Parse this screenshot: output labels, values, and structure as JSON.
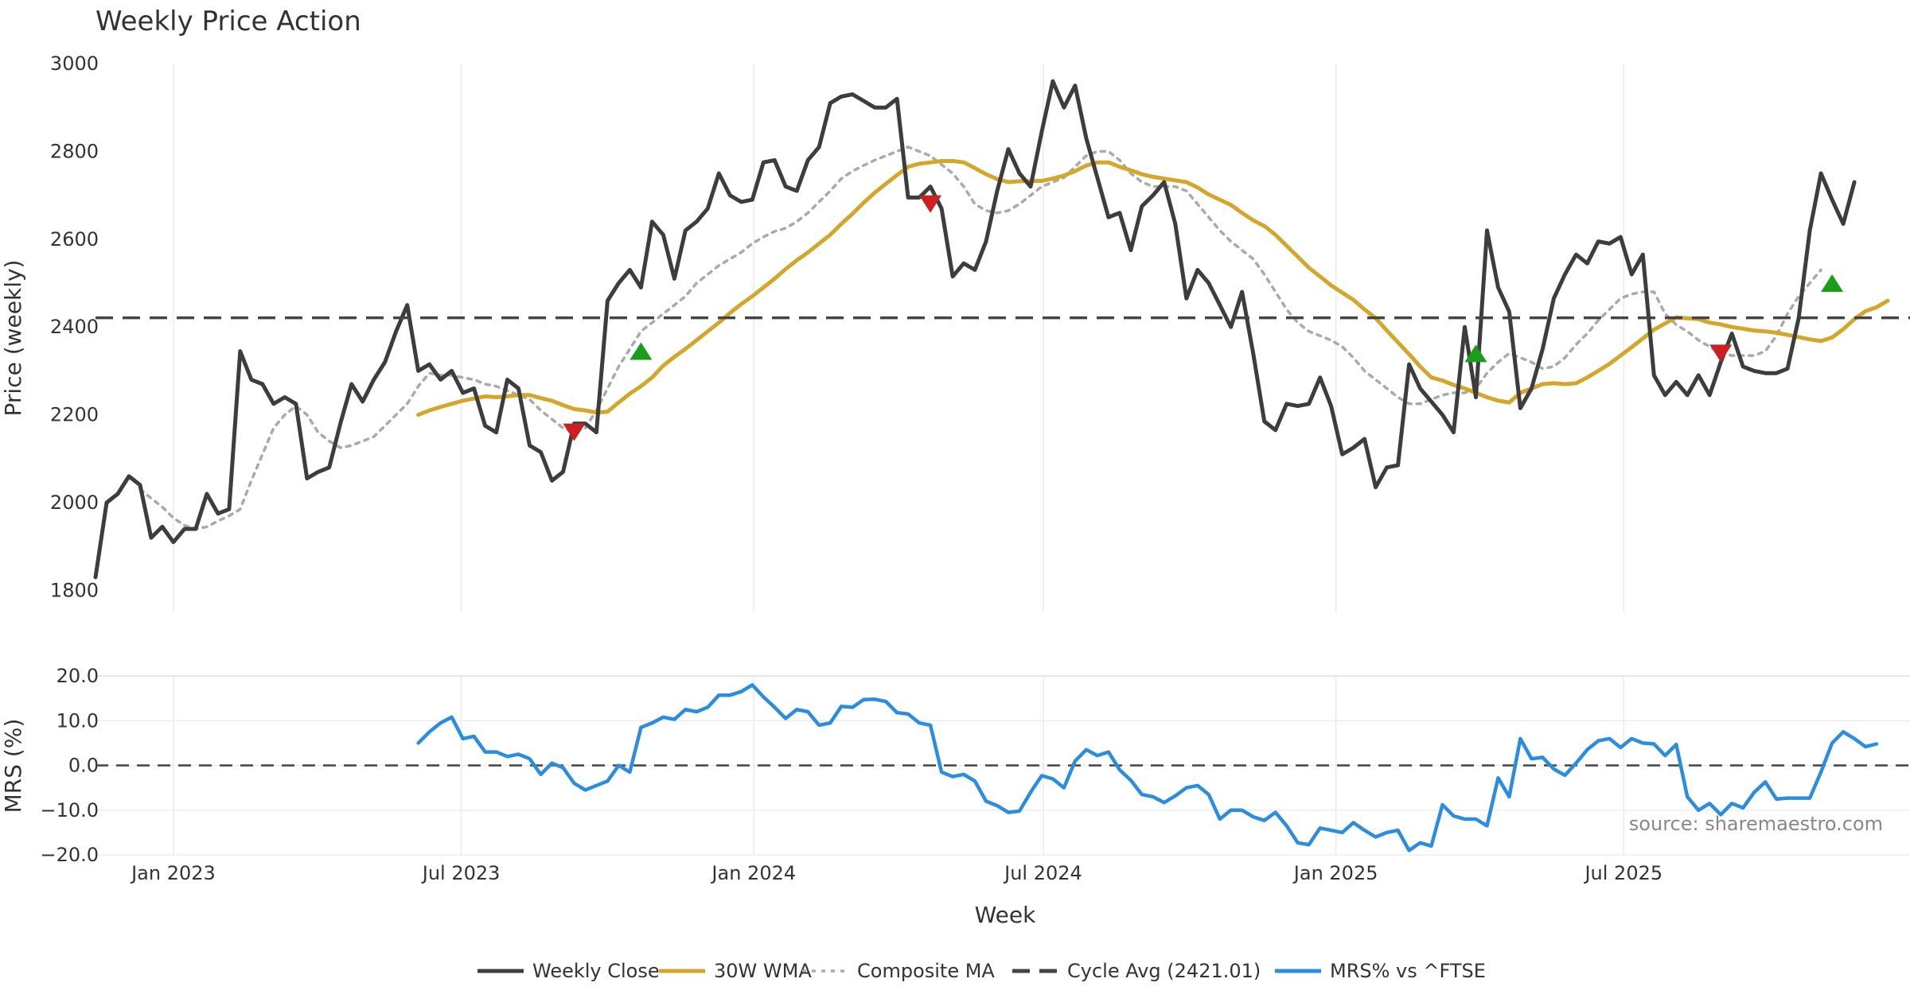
{
  "chart_data": [
    {
      "type": "line",
      "title": "Weekly Price Action",
      "ylabel": "Price (weekly)",
      "ylim": [
        1750,
        3000
      ],
      "yticks": [
        1800,
        2000,
        2200,
        2400,
        2600,
        2800,
        3000
      ],
      "xlim": [
        "2022-11-13",
        "2025-12-28"
      ],
      "grid": true,
      "x_start": "2022-11-13",
      "x_step_days": 7,
      "series": [
        {
          "name": "Weekly Close",
          "color": "#3d3d3d",
          "style": "solid",
          "offset": 0,
          "values": [
            1830,
            2000,
            2020,
            2060,
            2040,
            1920,
            1945,
            1910,
            1940,
            1940,
            2020,
            1975,
            1985,
            2345,
            2280,
            2270,
            2225,
            2240,
            2225,
            2055,
            2070,
            2080,
            2180,
            2270,
            2230,
            2280,
            2320,
            2390,
            2450,
            2300,
            2315,
            2280,
            2300,
            2250,
            2260,
            2175,
            2160,
            2280,
            2260,
            2130,
            2115,
            2050,
            2070,
            2180,
            2180,
            2160,
            2460,
            2500,
            2530,
            2490,
            2640,
            2610,
            2510,
            2620,
            2640,
            2670,
            2750,
            2700,
            2685,
            2690,
            2775,
            2780,
            2720,
            2710,
            2780,
            2810,
            2910,
            2925,
            2930,
            2915,
            2900,
            2900,
            2920,
            2695,
            2695,
            2720,
            2670,
            2515,
            2545,
            2530,
            2595,
            2710,
            2805,
            2750,
            2720,
            2845,
            2960,
            2900,
            2950,
            2830,
            2740,
            2650,
            2660,
            2575,
            2675,
            2700,
            2730,
            2635,
            2465,
            2530,
            2500,
            2450,
            2400,
            2480,
            2340,
            2185,
            2165,
            2225,
            2220,
            2225,
            2285,
            2220,
            2110,
            2125,
            2145,
            2035,
            2080,
            2085,
            2315,
            2260,
            2230,
            2200,
            2160,
            2400,
            2240,
            2620,
            2490,
            2435,
            2215,
            2260,
            2350,
            2465,
            2520,
            2565,
            2545,
            2595,
            2590,
            2605,
            2520,
            2565,
            2290,
            2245,
            2275,
            2245,
            2290,
            2245,
            2320,
            2385,
            2310,
            2300,
            2295,
            2295,
            2305,
            2420,
            2620,
            2750,
            2690,
            2635,
            2730
          ]
        },
        {
          "name": "30W WMA",
          "color": "#d4a62a",
          "style": "solid",
          "offset": 29,
          "values": [
            2200,
            2210,
            2218,
            2225,
            2232,
            2237,
            2242,
            2240,
            2242,
            2245,
            2245,
            2238,
            2232,
            2222,
            2213,
            2210,
            2205,
            2207,
            2228,
            2248,
            2265,
            2285,
            2312,
            2332,
            2350,
            2370,
            2390,
            2410,
            2432,
            2452,
            2470,
            2490,
            2510,
            2532,
            2552,
            2570,
            2590,
            2610,
            2635,
            2658,
            2683,
            2706,
            2726,
            2746,
            2765,
            2772,
            2775,
            2778,
            2778,
            2775,
            2762,
            2748,
            2737,
            2730,
            2732,
            2732,
            2733,
            2738,
            2745,
            2755,
            2768,
            2775,
            2775,
            2765,
            2757,
            2748,
            2742,
            2738,
            2734,
            2730,
            2718,
            2702,
            2690,
            2678,
            2660,
            2643,
            2630,
            2610,
            2585,
            2560,
            2535,
            2515,
            2495,
            2478,
            2462,
            2440,
            2420,
            2392,
            2365,
            2338,
            2310,
            2285,
            2278,
            2268,
            2260,
            2250,
            2240,
            2232,
            2228,
            2250,
            2260,
            2270,
            2272,
            2270,
            2272,
            2285,
            2300,
            2316,
            2335,
            2354,
            2374,
            2394,
            2408,
            2422,
            2420,
            2418,
            2410,
            2406,
            2400,
            2396,
            2392,
            2390,
            2387,
            2382,
            2377,
            2372,
            2368,
            2376,
            2395,
            2418,
            2436,
            2445,
            2460
          ]
        },
        {
          "name": "Composite MA",
          "color": "#aaaaaa",
          "style": "dotted",
          "offset": 4,
          "values": [
            2030,
            2010,
            1990,
            1965,
            1948,
            1940,
            1945,
            1958,
            1970,
            1985,
            2050,
            2110,
            2170,
            2200,
            2220,
            2200,
            2160,
            2140,
            2125,
            2130,
            2140,
            2150,
            2175,
            2200,
            2225,
            2265,
            2295,
            2290,
            2290,
            2285,
            2280,
            2270,
            2265,
            2255,
            2245,
            2235,
            2210,
            2190,
            2170,
            2160,
            2170,
            2210,
            2260,
            2310,
            2350,
            2390,
            2410,
            2430,
            2450,
            2470,
            2500,
            2520,
            2540,
            2555,
            2570,
            2590,
            2605,
            2618,
            2625,
            2640,
            2660,
            2685,
            2710,
            2738,
            2755,
            2768,
            2780,
            2790,
            2800,
            2810,
            2800,
            2790,
            2770,
            2750,
            2720,
            2680,
            2665,
            2660,
            2665,
            2680,
            2700,
            2720,
            2730,
            2740,
            2765,
            2790,
            2800,
            2800,
            2780,
            2750,
            2730,
            2720,
            2720,
            2720,
            2710,
            2680,
            2650,
            2620,
            2595,
            2575,
            2555,
            2520,
            2480,
            2440,
            2410,
            2390,
            2380,
            2370,
            2355,
            2330,
            2300,
            2280,
            2260,
            2240,
            2225,
            2225,
            2235,
            2245,
            2250,
            2250,
            2260,
            2295,
            2320,
            2340,
            2330,
            2320,
            2305,
            2310,
            2330,
            2360,
            2385,
            2415,
            2440,
            2465,
            2475,
            2480,
            2480,
            2430,
            2405,
            2390,
            2370,
            2355,
            2340,
            2335,
            2335,
            2335,
            2345,
            2380,
            2430,
            2470,
            2500,
            2530
          ]
        },
        {
          "name": "Cycle Avg (2421.01)",
          "color": "#444444",
          "style": "dashed",
          "value": 2421.01
        }
      ],
      "markers": [
        {
          "type": "sell",
          "date": "2023-09-10",
          "value": 2160,
          "color": "#cc1f1f"
        },
        {
          "type": "buy",
          "date": "2023-10-22",
          "value": 2345,
          "color": "#1a9e1a"
        },
        {
          "type": "sell",
          "date": "2024-04-21",
          "value": 2680,
          "color": "#cc1f1f"
        },
        {
          "type": "buy",
          "date": "2025-03-30",
          "value": 2340,
          "color": "#1a9e1a"
        },
        {
          "type": "sell",
          "date": "2025-08-31",
          "value": 2340,
          "color": "#cc1f1f"
        },
        {
          "type": "buy",
          "date": "2025-11-09",
          "value": 2500,
          "color": "#1a9e1a"
        }
      ]
    },
    {
      "type": "line",
      "ylabel": "MRS (%)",
      "ylim": [
        -20,
        20
      ],
      "yticks": [
        20,
        10,
        0,
        -10,
        -20
      ],
      "ytick_labels": [
        "20.0",
        "10.0",
        "0.0",
        "−10.0",
        "−20.0"
      ],
      "xlabel": "Week",
      "xticks": [
        {
          "label": "Jan 2023",
          "date": "2023-01-01"
        },
        {
          "label": "Jul 2023",
          "date": "2023-07-01"
        },
        {
          "label": "Jan 2024",
          "date": "2024-01-01"
        },
        {
          "label": "Jul 2024",
          "date": "2024-07-01"
        },
        {
          "label": "Jan 2025",
          "date": "2025-01-01"
        },
        {
          "label": "Jul 2025",
          "date": "2025-07-01"
        }
      ],
      "zero_line": {
        "value": 0,
        "style": "dashed",
        "color": "#444444"
      },
      "series": [
        {
          "name": "MRS% vs ^FTSE",
          "color": "#2b8de0",
          "style": "solid",
          "offset": 29,
          "values": [
            5,
            7.5,
            9.5,
            10.8,
            6,
            6.5,
            3,
            3,
            2,
            2.5,
            1.5,
            -2,
            0.5,
            -0.5,
            -4,
            -5.5,
            -4.5,
            -3.5,
            0,
            -1.5,
            8.5,
            9.5,
            10.8,
            10.3,
            12.5,
            12,
            13,
            15.7,
            15.7,
            16.5,
            18,
            15.3,
            13,
            10.5,
            12.5,
            12,
            9,
            9.5,
            13.2,
            13,
            14.7,
            14.8,
            14.3,
            11.8,
            11.5,
            9.5,
            9,
            -1.5,
            -2.5,
            -2,
            -3.5,
            -8,
            -9,
            -10.5,
            -10.2,
            -6,
            -2.3,
            -3,
            -5,
            1,
            3.5,
            2.2,
            3,
            -1,
            -3.3,
            -6.5,
            -7,
            -8.3,
            -6.8,
            -5,
            -4.5,
            -6.5,
            -12,
            -10,
            -10,
            -11.5,
            -12.3,
            -10.5,
            -13.5,
            -17.3,
            -17.7,
            -14,
            -14.5,
            -15,
            -12.8,
            -14.5,
            -16,
            -15,
            -14.5,
            -19,
            -17.3,
            -18,
            -8.8,
            -11.3,
            -12,
            -12,
            -13.5,
            -2.8,
            -7,
            6,
            1.5,
            1.8,
            -0.8,
            -2.2,
            0.5,
            3.5,
            5.5,
            6,
            4,
            6,
            5,
            4.8,
            2.2,
            4.7,
            -7,
            -10,
            -8.5,
            -11,
            -8.5,
            -9.5,
            -6,
            -3.7,
            -7.5,
            -7.3,
            -7.3,
            -7.3,
            -1.5,
            5,
            7.5,
            6,
            4.2,
            4.8
          ]
        }
      ]
    }
  ],
  "legend": {
    "placement": "bottom",
    "items": [
      {
        "label": "Weekly Close",
        "color": "#3d3d3d",
        "style": "solid"
      },
      {
        "label": "30W WMA",
        "color": "#d4a62a",
        "style": "solid"
      },
      {
        "label": "Composite MA",
        "color": "#aaaaaa",
        "style": "dotted"
      },
      {
        "label": "Cycle Avg (2421.01)",
        "color": "#444444",
        "style": "dashed"
      },
      {
        "label": "MRS% vs ^FTSE",
        "color": "#2b8de0",
        "style": "solid"
      }
    ]
  },
  "source": "source: sharemaestro.com"
}
